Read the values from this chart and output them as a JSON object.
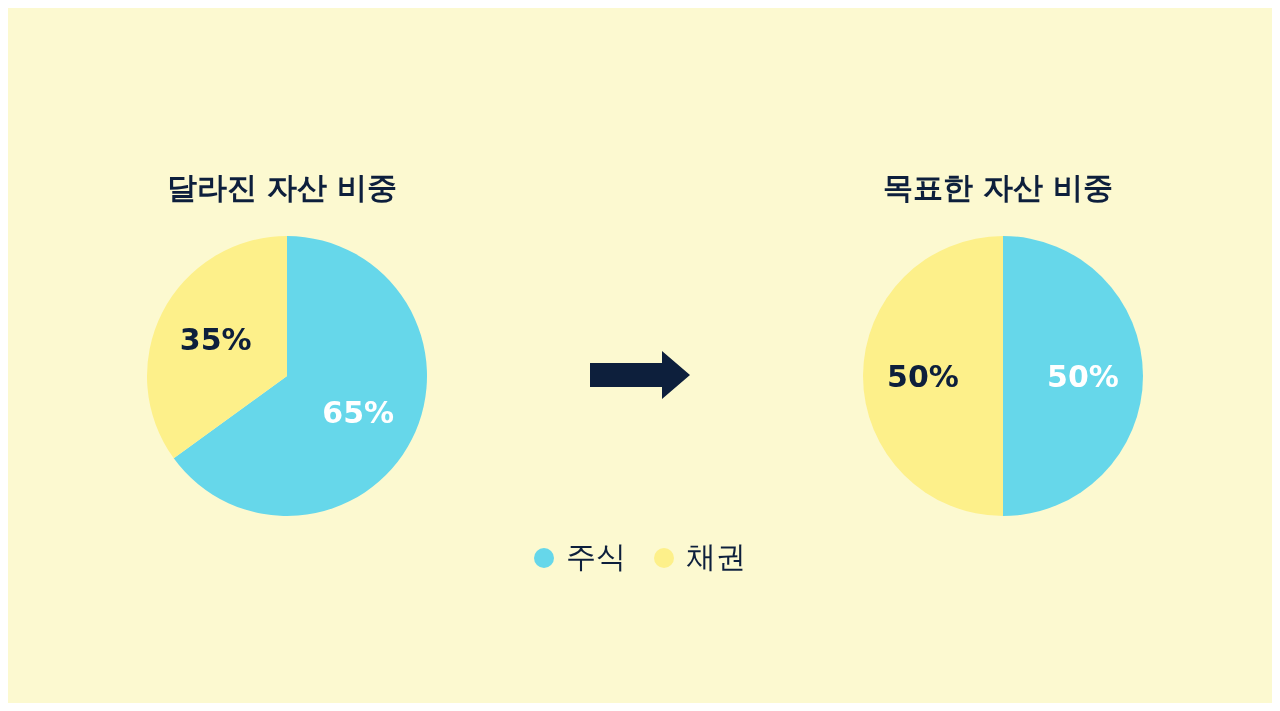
{
  "chart_data": [
    {
      "type": "pie",
      "title": "달라진 자산 비중",
      "categories": [
        "주식",
        "채권"
      ],
      "values": [
        65,
        35
      ],
      "colors": [
        "#66d7ea",
        "#fdf08a"
      ],
      "value_labels": [
        "65%",
        "35%"
      ],
      "legend": "bottom"
    },
    {
      "type": "pie",
      "title": "목표한 자산 비중",
      "values": [
        50,
        50
      ],
      "colors": [
        "#66d7ea",
        "#fdf08a"
      ],
      "value_labels": [
        "50%",
        "50%"
      ]
    }
  ]
}
